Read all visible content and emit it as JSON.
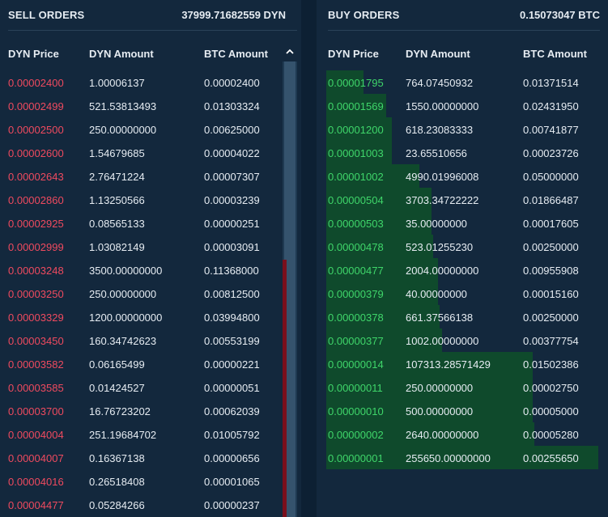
{
  "sell": {
    "title": "SELL ORDERS",
    "total": "37999.71682559 DYN",
    "headers": {
      "price": "DYN Price",
      "amount": "DYN Amount",
      "btc": "BTC Amount"
    },
    "rows": [
      {
        "price": "0.00002400",
        "amount": "1.00006137",
        "btc": "0.00002400"
      },
      {
        "price": "0.00002499",
        "amount": "521.53813493",
        "btc": "0.01303324"
      },
      {
        "price": "0.00002500",
        "amount": "250.00000000",
        "btc": "0.00625000"
      },
      {
        "price": "0.00002600",
        "amount": "1.54679685",
        "btc": "0.00004022"
      },
      {
        "price": "0.00002643",
        "amount": "2.76471224",
        "btc": "0.00007307"
      },
      {
        "price": "0.00002860",
        "amount": "1.13250566",
        "btc": "0.00003239"
      },
      {
        "price": "0.00002925",
        "amount": "0.08565133",
        "btc": "0.00000251"
      },
      {
        "price": "0.00002999",
        "amount": "1.03082149",
        "btc": "0.00003091"
      },
      {
        "price": "0.00003248",
        "amount": "3500.00000000",
        "btc": "0.11368000"
      },
      {
        "price": "0.00003250",
        "amount": "250.00000000",
        "btc": "0.00812500"
      },
      {
        "price": "0.00003329",
        "amount": "1200.00000000",
        "btc": "0.03994800"
      },
      {
        "price": "0.00003450",
        "amount": "160.34742623",
        "btc": "0.00553199"
      },
      {
        "price": "0.00003582",
        "amount": "0.06165499",
        "btc": "0.00000221"
      },
      {
        "price": "0.00003585",
        "amount": "0.01424527",
        "btc": "0.00000051"
      },
      {
        "price": "0.00003700",
        "amount": "16.76723202",
        "btc": "0.00062039"
      },
      {
        "price": "0.00004004",
        "amount": "251.19684702",
        "btc": "0.01005792"
      },
      {
        "price": "0.00004007",
        "amount": "0.16367138",
        "btc": "0.00000656"
      },
      {
        "price": "0.00004016",
        "amount": "0.26518408",
        "btc": "0.00001065"
      },
      {
        "price": "0.00004477",
        "amount": "0.05284266",
        "btc": "0.00000237"
      }
    ]
  },
  "buy": {
    "title": "BUY ORDERS",
    "total": "0.15073047 BTC",
    "headers": {
      "price": "DYN Price",
      "amount": "DYN Amount",
      "btc": "BTC Amount"
    },
    "rows": [
      {
        "price": "0.00001795",
        "amount": "764.07450932",
        "btc": "0.01371514"
      },
      {
        "price": "0.00001569",
        "amount": "1550.00000000",
        "btc": "0.02431950"
      },
      {
        "price": "0.00001200",
        "amount": "618.23083333",
        "btc": "0.00741877"
      },
      {
        "price": "0.00001003",
        "amount": "23.65510656",
        "btc": "0.00023726"
      },
      {
        "price": "0.00001002",
        "amount": "4990.01996008",
        "btc": "0.05000000"
      },
      {
        "price": "0.00000504",
        "amount": "3703.34722222",
        "btc": "0.01866487"
      },
      {
        "price": "0.00000503",
        "amount": "35.00000000",
        "btc": "0.00017605"
      },
      {
        "price": "0.00000478",
        "amount": "523.01255230",
        "btc": "0.00250000"
      },
      {
        "price": "0.00000477",
        "amount": "2004.00000000",
        "btc": "0.00955908"
      },
      {
        "price": "0.00000379",
        "amount": "40.00000000",
        "btc": "0.00015160"
      },
      {
        "price": "0.00000378",
        "amount": "661.37566138",
        "btc": "0.00250000"
      },
      {
        "price": "0.00000377",
        "amount": "1002.00000000",
        "btc": "0.00377754"
      },
      {
        "price": "0.00000014",
        "amount": "107313.28571429",
        "btc": "0.01502386"
      },
      {
        "price": "0.00000011",
        "amount": "250.00000000",
        "btc": "0.00002750"
      },
      {
        "price": "0.00000010",
        "amount": "500.00000000",
        "btc": "0.00005000"
      },
      {
        "price": "0.00000002",
        "amount": "2640.00000000",
        "btc": "0.00005280"
      },
      {
        "price": "0.00000001",
        "amount": "255650.00000000",
        "btc": "0.00255650"
      }
    ]
  },
  "colors": {
    "sell_price": "#ef4a5f",
    "buy_price": "#3fd66a",
    "depth_buy": "#0f4a2c",
    "depth_sell": "#7a0f1c"
  },
  "icons": {
    "scroll_up": "chevron-up-icon"
  }
}
